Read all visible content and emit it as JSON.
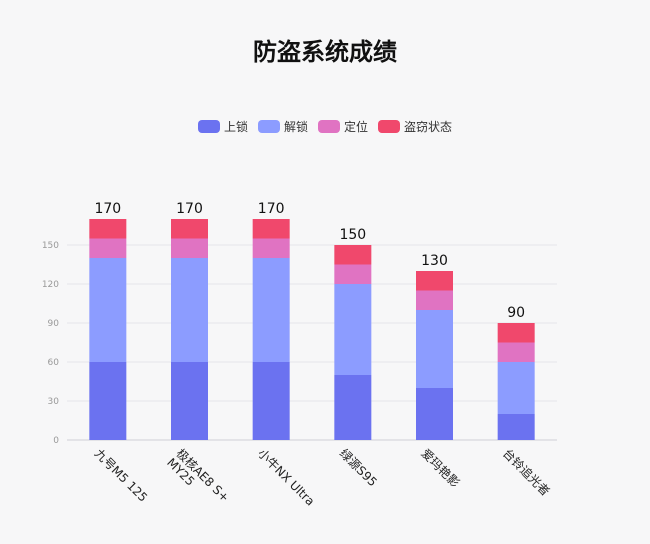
{
  "chart_data": {
    "type": "bar",
    "stacked": true,
    "title": "防盗系统成绩",
    "categories": [
      "九号M5 125",
      "极核AE8 S+ MY25",
      "小牛NX Ultra",
      "绿源S95",
      "爱玛艳影",
      "台铃追光者"
    ],
    "series": [
      {
        "name": "上锁",
        "color": "#6b72f0",
        "values": [
          60,
          60,
          60,
          50,
          40,
          20
        ]
      },
      {
        "name": "解锁",
        "color": "#8c9cff",
        "values": [
          80,
          80,
          80,
          70,
          60,
          40
        ]
      },
      {
        "name": "定位",
        "color": "#e073c2",
        "values": [
          15,
          15,
          15,
          15,
          15,
          15
        ]
      },
      {
        "name": "盗窃状态",
        "color": "#f0486c",
        "values": [
          15,
          15,
          15,
          15,
          15,
          15
        ]
      }
    ],
    "totals": [
      170,
      170,
      170,
      150,
      130,
      90
    ],
    "ylim": [
      0,
      170
    ],
    "yticks": [
      0,
      30,
      60,
      90,
      120,
      150
    ],
    "grid": true,
    "legend_position": "top-center"
  }
}
